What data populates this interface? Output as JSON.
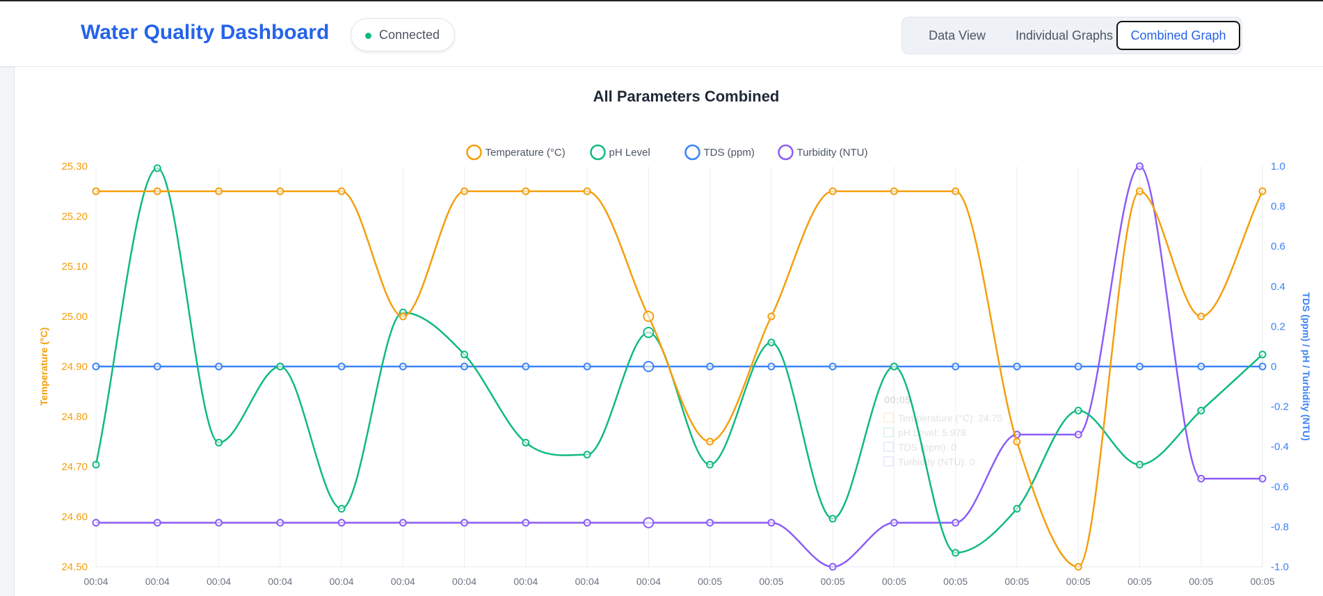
{
  "header": {
    "title": "Water Quality Dashboard",
    "status_label": "Connected"
  },
  "nav": {
    "tabs": [
      {
        "label": "Data View",
        "active": false
      },
      {
        "label": "Individual Graphs",
        "active": false
      },
      {
        "label": "Combined Graph",
        "active": true
      }
    ]
  },
  "colors": {
    "temperature": "#f59e0b",
    "ph": "#10b981",
    "tds": "#3b82f6",
    "turbidity": "#8b5cf6",
    "accent": "#2563eb"
  },
  "chart_data": {
    "type": "line",
    "title": "All Parameters Combined",
    "categories": [
      "00:04",
      "00:04",
      "00:04",
      "00:04",
      "00:04",
      "00:04",
      "00:04",
      "00:04",
      "00:04",
      "00:04",
      "00:05",
      "00:05",
      "00:05",
      "00:05",
      "00:05",
      "00:05",
      "00:05",
      "00:05",
      "00:05",
      "00:05"
    ],
    "y_left": {
      "label": "Temperature (°C)",
      "range": [
        24.5,
        25.3
      ],
      "ticks": [
        "25.30",
        "25.20",
        "25.10",
        "25.00",
        "24.90",
        "24.80",
        "24.70",
        "24.60",
        "24.50"
      ]
    },
    "y_right": {
      "label": "TDS (ppm) / pH / Turbidity (NTU)",
      "range": [
        -1,
        1
      ],
      "ticks": [
        "1.0",
        "0.8",
        "0.6",
        "0.4",
        "0.2",
        "0",
        "-0.2",
        "-0.4",
        "-0.6",
        "-0.8",
        "-1.0"
      ]
    },
    "legend_position": "top-center",
    "grid": true,
    "series": [
      {
        "name": "Temperature (°C)",
        "axis": "left",
        "values": [
          25.25,
          25.25,
          25.25,
          25.25,
          25.25,
          25.0,
          25.25,
          25.25,
          25.25,
          25.0,
          24.75,
          25.0,
          25.25,
          25.25,
          25.25,
          24.75,
          24.5,
          25.25,
          25.0,
          25.25
        ]
      },
      {
        "name": "pH Level",
        "axis": "right",
        "values": [
          -0.49,
          0.99,
          -0.38,
          0.0,
          -0.71,
          0.27,
          0.06,
          -0.38,
          -0.44,
          0.17,
          -0.49,
          0.12,
          -0.76,
          0.0,
          -0.93,
          -0.71,
          -0.22,
          -0.49,
          -0.22,
          0.06
        ]
      },
      {
        "name": "TDS (ppm)",
        "axis": "right",
        "values": [
          0,
          0,
          0,
          0,
          0,
          0,
          0,
          0,
          0,
          0,
          0,
          0,
          0,
          0,
          0,
          0,
          0,
          0,
          0,
          0
        ]
      },
      {
        "name": "Turbidity (NTU)",
        "axis": "right",
        "values": [
          -0.78,
          -0.78,
          -0.78,
          -0.78,
          -0.78,
          -0.78,
          -0.78,
          -0.78,
          -0.78,
          -0.78,
          -0.78,
          -0.78,
          -1.0,
          -0.78,
          -0.78,
          -0.34,
          -0.34,
          1.0,
          -0.56,
          -0.56
        ]
      }
    ],
    "tooltip": {
      "title": "00:05",
      "lines": [
        "Temperature (°C): 24.75",
        "pH Level: 5.978",
        "TDS (ppm): 0",
        "Turbidity (NTU): 0"
      ]
    }
  }
}
